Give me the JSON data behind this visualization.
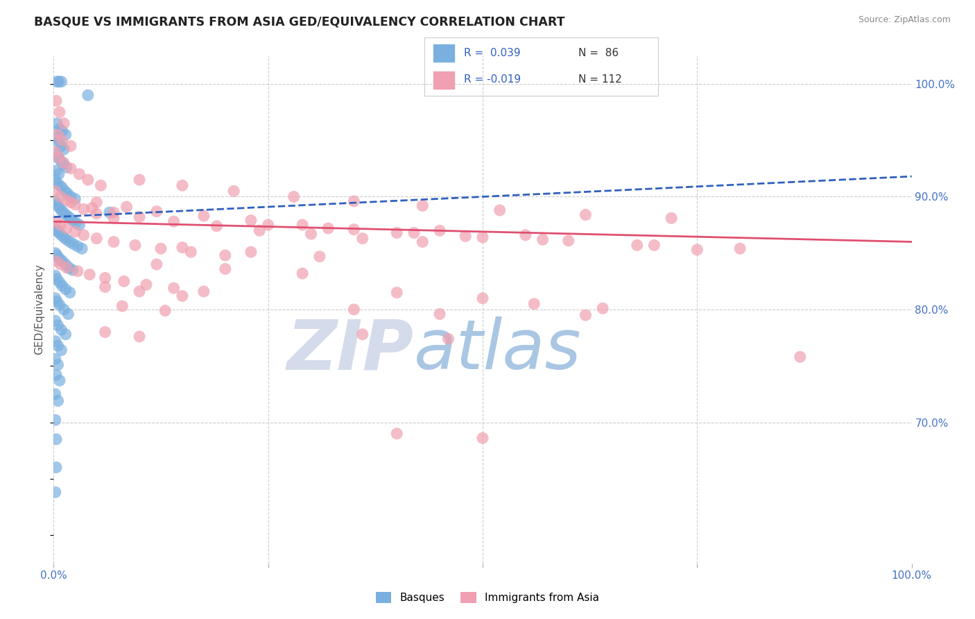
{
  "title": "BASQUE VS IMMIGRANTS FROM ASIA GED/EQUIVALENCY CORRELATION CHART",
  "source": "Source: ZipAtlas.com",
  "ylabel": "GED/Equivalency",
  "right_yticks": [
    "100.0%",
    "90.0%",
    "80.0%",
    "70.0%"
  ],
  "right_ytick_values": [
    1.0,
    0.9,
    0.8,
    0.7
  ],
  "x_range": [
    0.0,
    1.0
  ],
  "y_range": [
    0.575,
    1.025
  ],
  "blue_color": "#7ab0e0",
  "pink_color": "#f0a0b0",
  "trend_blue_color": "#3060c0",
  "trend_pink_color": "#e05070",
  "right_axis_color": "#4472c4",
  "title_color": "#222222",
  "grid_color": "#cccccc",
  "watermark_gray": "#d0d8e8",
  "watermark_blue": "#a0c0e0",
  "blue_trend_x0": 0.0,
  "blue_trend_x1": 1.0,
  "blue_trend_y0": 0.882,
  "blue_trend_y1": 0.918,
  "pink_trend_x0": 0.0,
  "pink_trend_x1": 1.0,
  "pink_trend_y0": 0.878,
  "pink_trend_y1": 0.86,
  "blue_dots": [
    [
      0.004,
      1.002
    ],
    [
      0.006,
      1.002
    ],
    [
      0.009,
      1.002
    ],
    [
      0.004,
      0.965
    ],
    [
      0.007,
      0.96
    ],
    [
      0.01,
      0.958
    ],
    [
      0.014,
      0.955
    ],
    [
      0.003,
      0.952
    ],
    [
      0.006,
      0.948
    ],
    [
      0.009,
      0.945
    ],
    [
      0.012,
      0.942
    ],
    [
      0.002,
      0.938
    ],
    [
      0.005,
      0.935
    ],
    [
      0.008,
      0.932
    ],
    [
      0.011,
      0.929
    ],
    [
      0.015,
      0.926
    ],
    [
      0.003,
      0.923
    ],
    [
      0.006,
      0.92
    ],
    [
      0.002,
      0.915
    ],
    [
      0.004,
      0.912
    ],
    [
      0.007,
      0.91
    ],
    [
      0.01,
      0.908
    ],
    [
      0.013,
      0.905
    ],
    [
      0.016,
      0.903
    ],
    [
      0.02,
      0.9
    ],
    [
      0.025,
      0.898
    ],
    [
      0.002,
      0.896
    ],
    [
      0.004,
      0.893
    ],
    [
      0.006,
      0.891
    ],
    [
      0.008,
      0.889
    ],
    [
      0.01,
      0.887
    ],
    [
      0.013,
      0.885
    ],
    [
      0.016,
      0.883
    ],
    [
      0.019,
      0.881
    ],
    [
      0.022,
      0.879
    ],
    [
      0.026,
      0.877
    ],
    [
      0.03,
      0.875
    ],
    [
      0.002,
      0.872
    ],
    [
      0.004,
      0.87
    ],
    [
      0.006,
      0.868
    ],
    [
      0.009,
      0.866
    ],
    [
      0.012,
      0.864
    ],
    [
      0.015,
      0.862
    ],
    [
      0.019,
      0.86
    ],
    [
      0.023,
      0.858
    ],
    [
      0.028,
      0.856
    ],
    [
      0.033,
      0.854
    ],
    [
      0.002,
      0.85
    ],
    [
      0.004,
      0.848
    ],
    [
      0.007,
      0.845
    ],
    [
      0.01,
      0.843
    ],
    [
      0.014,
      0.84
    ],
    [
      0.018,
      0.837
    ],
    [
      0.022,
      0.835
    ],
    [
      0.002,
      0.83
    ],
    [
      0.004,
      0.827
    ],
    [
      0.007,
      0.824
    ],
    [
      0.01,
      0.821
    ],
    [
      0.014,
      0.818
    ],
    [
      0.019,
      0.815
    ],
    [
      0.002,
      0.81
    ],
    [
      0.004,
      0.807
    ],
    [
      0.007,
      0.804
    ],
    [
      0.012,
      0.8
    ],
    [
      0.017,
      0.796
    ],
    [
      0.002,
      0.79
    ],
    [
      0.005,
      0.786
    ],
    [
      0.009,
      0.782
    ],
    [
      0.014,
      0.778
    ],
    [
      0.002,
      0.772
    ],
    [
      0.005,
      0.768
    ],
    [
      0.009,
      0.764
    ],
    [
      0.002,
      0.756
    ],
    [
      0.005,
      0.751
    ],
    [
      0.003,
      0.742
    ],
    [
      0.007,
      0.737
    ],
    [
      0.002,
      0.725
    ],
    [
      0.005,
      0.719
    ],
    [
      0.002,
      0.702
    ],
    [
      0.003,
      0.685
    ],
    [
      0.003,
      0.66
    ],
    [
      0.002,
      0.638
    ],
    [
      0.04,
      0.99
    ],
    [
      0.065,
      0.886
    ]
  ],
  "pink_dots": [
    [
      0.003,
      0.985
    ],
    [
      0.007,
      0.975
    ],
    [
      0.012,
      0.965
    ],
    [
      0.005,
      0.955
    ],
    [
      0.01,
      0.95
    ],
    [
      0.02,
      0.945
    ],
    [
      0.002,
      0.94
    ],
    [
      0.006,
      0.935
    ],
    [
      0.012,
      0.93
    ],
    [
      0.02,
      0.925
    ],
    [
      0.03,
      0.92
    ],
    [
      0.04,
      0.915
    ],
    [
      0.055,
      0.91
    ],
    [
      0.002,
      0.905
    ],
    [
      0.008,
      0.9
    ],
    [
      0.015,
      0.897
    ],
    [
      0.025,
      0.893
    ],
    [
      0.035,
      0.889
    ],
    [
      0.05,
      0.885
    ],
    [
      0.07,
      0.881
    ],
    [
      0.003,
      0.878
    ],
    [
      0.008,
      0.875
    ],
    [
      0.015,
      0.872
    ],
    [
      0.025,
      0.869
    ],
    [
      0.035,
      0.866
    ],
    [
      0.05,
      0.863
    ],
    [
      0.07,
      0.86
    ],
    [
      0.095,
      0.857
    ],
    [
      0.125,
      0.854
    ],
    [
      0.16,
      0.851
    ],
    [
      0.2,
      0.848
    ],
    [
      0.003,
      0.843
    ],
    [
      0.008,
      0.84
    ],
    [
      0.015,
      0.837
    ],
    [
      0.028,
      0.834
    ],
    [
      0.042,
      0.831
    ],
    [
      0.06,
      0.828
    ],
    [
      0.082,
      0.825
    ],
    [
      0.108,
      0.822
    ],
    [
      0.14,
      0.819
    ],
    [
      0.175,
      0.816
    ],
    [
      0.02,
      0.895
    ],
    [
      0.045,
      0.89
    ],
    [
      0.07,
      0.886
    ],
    [
      0.1,
      0.882
    ],
    [
      0.14,
      0.878
    ],
    [
      0.19,
      0.874
    ],
    [
      0.24,
      0.87
    ],
    [
      0.3,
      0.867
    ],
    [
      0.36,
      0.863
    ],
    [
      0.43,
      0.86
    ],
    [
      0.05,
      0.895
    ],
    [
      0.085,
      0.891
    ],
    [
      0.12,
      0.887
    ],
    [
      0.175,
      0.883
    ],
    [
      0.23,
      0.879
    ],
    [
      0.29,
      0.875
    ],
    [
      0.35,
      0.871
    ],
    [
      0.42,
      0.868
    ],
    [
      0.5,
      0.864
    ],
    [
      0.6,
      0.861
    ],
    [
      0.7,
      0.857
    ],
    [
      0.8,
      0.854
    ],
    [
      0.1,
      0.915
    ],
    [
      0.15,
      0.91
    ],
    [
      0.21,
      0.905
    ],
    [
      0.28,
      0.9
    ],
    [
      0.35,
      0.896
    ],
    [
      0.43,
      0.892
    ],
    [
      0.52,
      0.888
    ],
    [
      0.62,
      0.884
    ],
    [
      0.72,
      0.881
    ],
    [
      0.25,
      0.875
    ],
    [
      0.32,
      0.872
    ],
    [
      0.4,
      0.868
    ],
    [
      0.48,
      0.865
    ],
    [
      0.57,
      0.862
    ],
    [
      0.15,
      0.855
    ],
    [
      0.23,
      0.851
    ],
    [
      0.31,
      0.847
    ],
    [
      0.12,
      0.84
    ],
    [
      0.2,
      0.836
    ],
    [
      0.29,
      0.832
    ],
    [
      0.06,
      0.82
    ],
    [
      0.1,
      0.816
    ],
    [
      0.15,
      0.812
    ],
    [
      0.08,
      0.803
    ],
    [
      0.13,
      0.799
    ],
    [
      0.35,
      0.8
    ],
    [
      0.45,
      0.796
    ],
    [
      0.4,
      0.815
    ],
    [
      0.5,
      0.81
    ],
    [
      0.56,
      0.805
    ],
    [
      0.64,
      0.801
    ],
    [
      0.68,
      0.857
    ],
    [
      0.75,
      0.853
    ],
    [
      0.45,
      0.87
    ],
    [
      0.55,
      0.866
    ],
    [
      0.06,
      0.78
    ],
    [
      0.1,
      0.776
    ],
    [
      0.4,
      0.69
    ],
    [
      0.5,
      0.686
    ],
    [
      0.36,
      0.778
    ],
    [
      0.46,
      0.774
    ],
    [
      0.62,
      0.795
    ],
    [
      0.87,
      0.758
    ]
  ]
}
